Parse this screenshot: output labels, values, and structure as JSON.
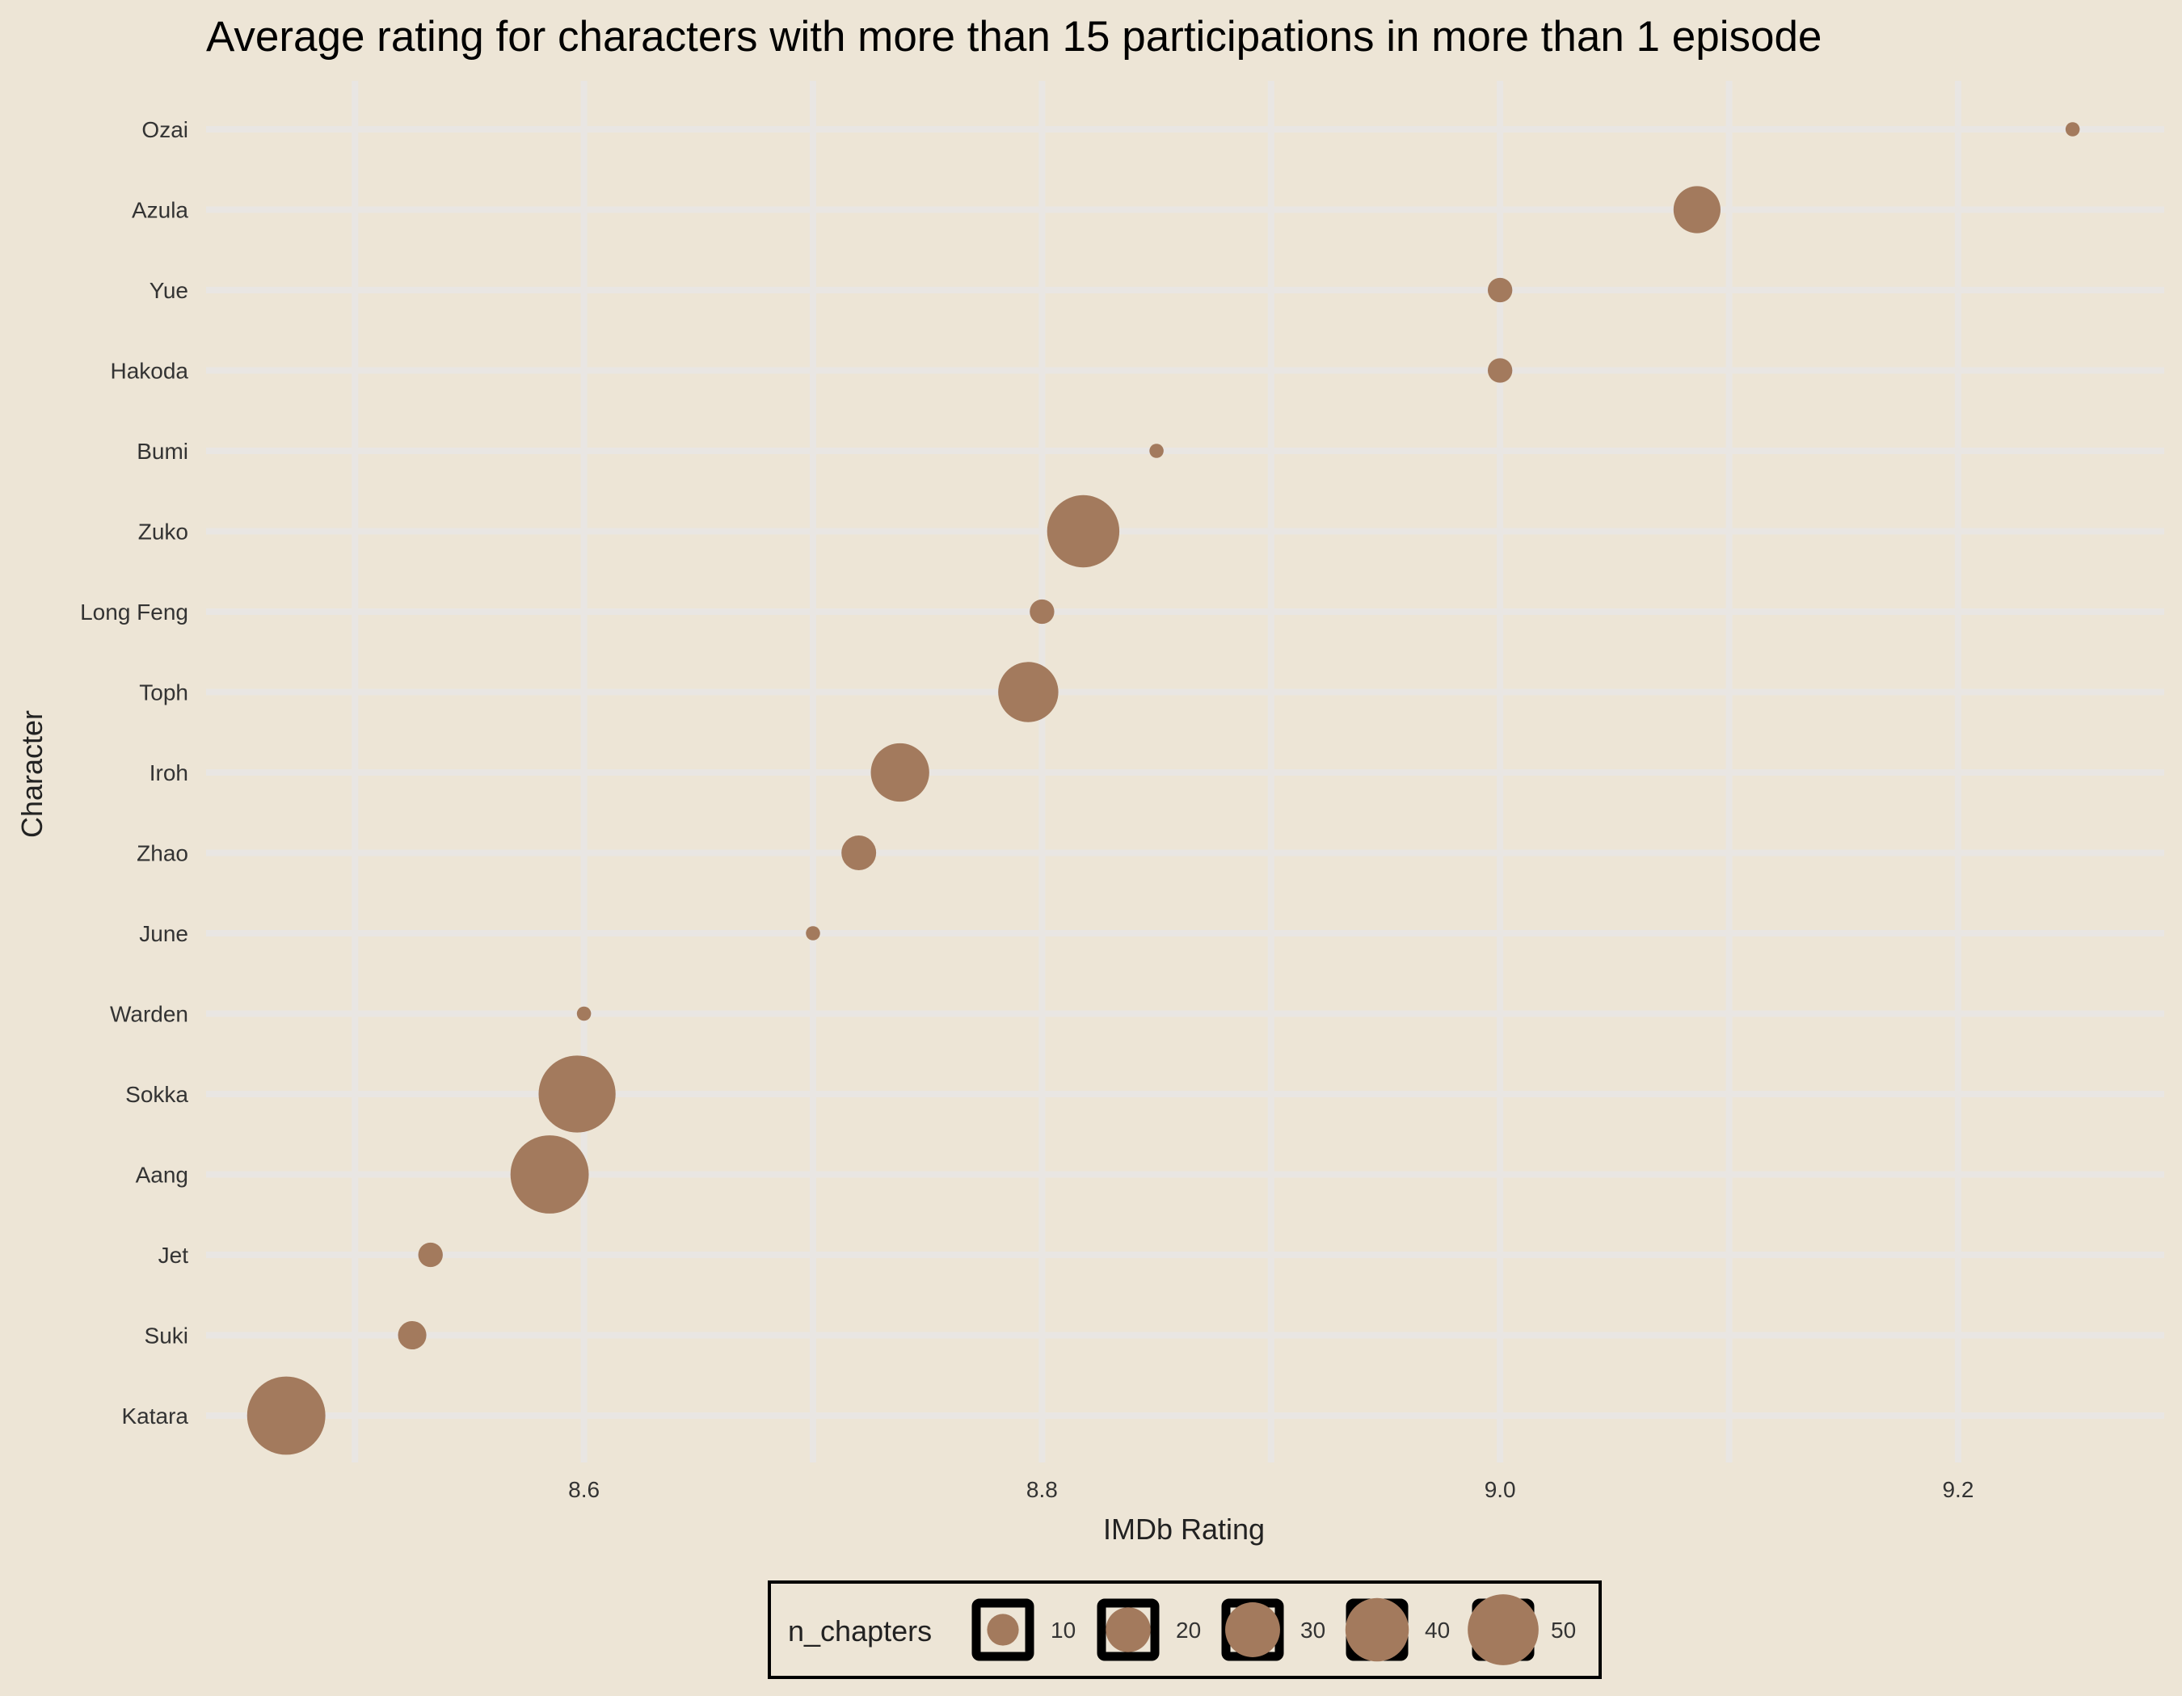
{
  "colors": {
    "background": "#ede5d6",
    "grid": "#e9e6e3",
    "point": "#a37a5d",
    "text": "#000000",
    "tick_text": "#333333",
    "axis_title": "#222222"
  },
  "chart_data": {
    "type": "scatter",
    "title": "Average rating for characters with more than 15 participations in more than 1 episode",
    "xlabel": "IMDb Rating",
    "ylabel": "Character",
    "xlim": [
      8.435,
      9.29
    ],
    "x_ticks": [
      "8.6",
      "8.8",
      "9.0",
      "9.2"
    ],
    "x_tick_values": [
      8.6,
      8.8,
      9.0,
      9.2
    ],
    "x_minor_gridlines": [
      8.5,
      8.7,
      8.9,
      9.1
    ],
    "grid": true,
    "size_variable": "n_chapters",
    "legend": {
      "title": "n_chapters",
      "position": "bottom",
      "values": [
        10,
        20,
        30,
        40,
        50
      ],
      "labels": [
        "10",
        "20",
        "30",
        "40",
        "50"
      ]
    },
    "points": [
      {
        "character": "Ozai",
        "rating": 9.25,
        "n_chapters": 2
      },
      {
        "character": "Azula",
        "rating": 9.086,
        "n_chapters": 22
      },
      {
        "character": "Yue",
        "rating": 9.0,
        "n_chapters": 6
      },
      {
        "character": "Hakoda",
        "rating": 9.0,
        "n_chapters": 6
      },
      {
        "character": "Bumi",
        "rating": 8.85,
        "n_chapters": 2
      },
      {
        "character": "Zuko",
        "rating": 8.818,
        "n_chapters": 52
      },
      {
        "character": "Long Feng",
        "rating": 8.8,
        "n_chapters": 6
      },
      {
        "character": "Toph",
        "rating": 8.794,
        "n_chapters": 36
      },
      {
        "character": "Iroh",
        "rating": 8.738,
        "n_chapters": 34
      },
      {
        "character": "Zhao",
        "rating": 8.72,
        "n_chapters": 12
      },
      {
        "character": "June",
        "rating": 8.7,
        "n_chapters": 2
      },
      {
        "character": "Warden",
        "rating": 8.6,
        "n_chapters": 2
      },
      {
        "character": "Sokka",
        "rating": 8.597,
        "n_chapters": 59
      },
      {
        "character": "Aang",
        "rating": 8.585,
        "n_chapters": 61
      },
      {
        "character": "Jet",
        "rating": 8.533,
        "n_chapters": 6
      },
      {
        "character": "Suki",
        "rating": 8.525,
        "n_chapters": 8
      },
      {
        "character": "Katara",
        "rating": 8.47,
        "n_chapters": 61
      }
    ]
  }
}
